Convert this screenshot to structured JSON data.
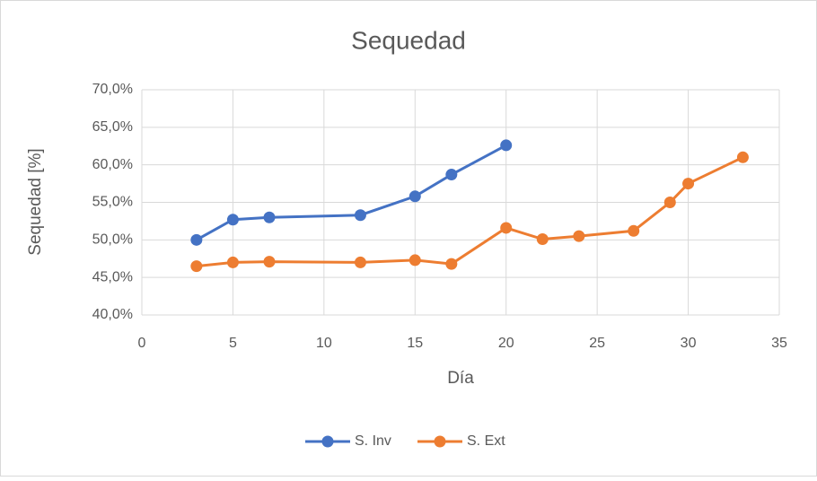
{
  "chart_data": {
    "type": "scatter-line",
    "title": "Sequedad",
    "x_label": "Día",
    "y_label": "Sequedad [%]",
    "xlim": [
      0,
      35
    ],
    "xticks": [
      0,
      5,
      10,
      15,
      20,
      25,
      30,
      35
    ],
    "ylim": [
      40,
      70
    ],
    "yticks": [
      {
        "value": 40,
        "label": "40,0%"
      },
      {
        "value": 45,
        "label": "45,0%"
      },
      {
        "value": 50,
        "label": "50,0%"
      },
      {
        "value": 55,
        "label": "55,0%"
      },
      {
        "value": 60,
        "label": "60,0%"
      },
      {
        "value": 65,
        "label": "65,0%"
      },
      {
        "value": 70,
        "label": "70,0%"
      }
    ],
    "grid": true,
    "legend": "bottom",
    "series": [
      {
        "name": "S. Inv",
        "color": "#4472c4",
        "x": [
          3,
          5,
          7,
          12,
          15,
          17,
          20
        ],
        "values": [
          50.0,
          52.7,
          53.0,
          53.3,
          55.8,
          58.7,
          62.6
        ]
      },
      {
        "name": "S. Ext",
        "color": "#ed7d31",
        "x": [
          3,
          5,
          7,
          12,
          15,
          17,
          20,
          22,
          24,
          27,
          29,
          30,
          33
        ],
        "values": [
          46.5,
          47.0,
          47.1,
          47.0,
          47.3,
          46.8,
          51.6,
          50.1,
          50.5,
          51.2,
          55.0,
          57.5,
          61.0
        ]
      }
    ]
  }
}
